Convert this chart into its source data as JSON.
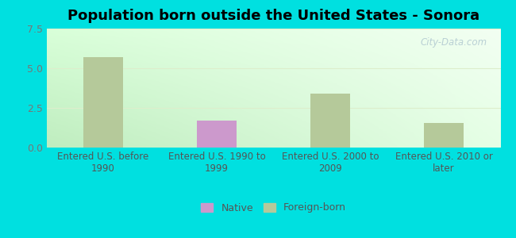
{
  "title": "Population born outside the United States - Sonora",
  "categories": [
    "Entered U.S. before\n1990",
    "Entered U.S. 1990 to\n1999",
    "Entered U.S. 2000 to\n2009",
    "Entered U.S. 2010 or\nlater"
  ],
  "native_values": [
    0,
    1.7,
    0,
    0
  ],
  "foreign_born_values": [
    5.7,
    0,
    3.4,
    1.55
  ],
  "native_color": "#cc99cc",
  "foreign_born_color": "#b5c99a",
  "bg_color_bottom_left": "#c5e8c5",
  "bg_color_top_right": "#f0fff0",
  "outer_background": "#00e0e0",
  "ylim": [
    0,
    7.5
  ],
  "yticks": [
    0,
    2.5,
    5,
    7.5
  ],
  "watermark": "City-Data.com",
  "legend_native": "Native",
  "legend_foreign": "Foreign-born",
  "bar_width": 0.35,
  "title_fontsize": 13,
  "grid_color": "#ddeecc",
  "tick_color": "#777777",
  "label_color": "#555555"
}
